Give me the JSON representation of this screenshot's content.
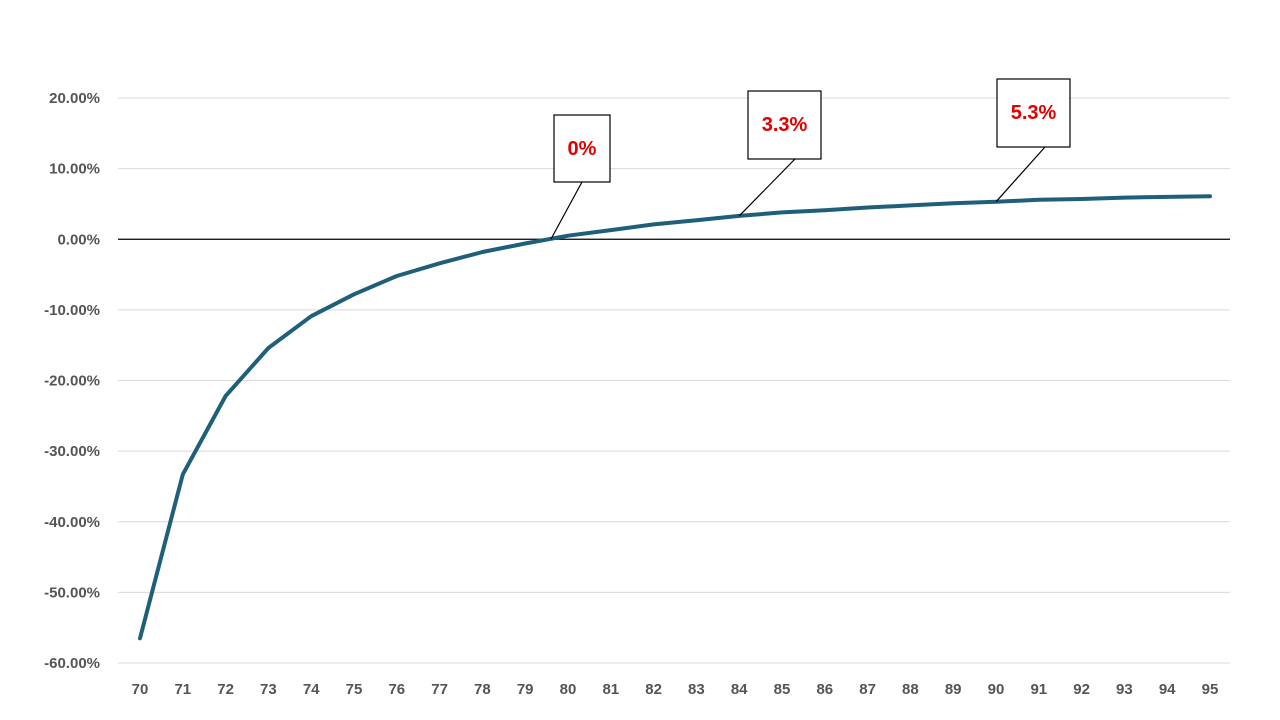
{
  "chart_data": {
    "type": "line",
    "title": "",
    "xlabel": "",
    "ylabel": "",
    "x": [
      70,
      71,
      72,
      73,
      74,
      75,
      76,
      77,
      78,
      79,
      80,
      81,
      82,
      83,
      84,
      85,
      86,
      87,
      88,
      89,
      90,
      91,
      92,
      93,
      94,
      95
    ],
    "series": [
      {
        "values": [
          -56.5,
          -33.3,
          -22.2,
          -15.4,
          -10.9,
          -7.8,
          -5.2,
          -3.4,
          -1.8,
          -0.6,
          0.5,
          1.3,
          2.1,
          2.7,
          3.3,
          3.8,
          4.1,
          4.5,
          4.8,
          5.1,
          5.3,
          5.6,
          5.7,
          5.9,
          6.0,
          6.1
        ],
        "color": "#1f5f7a"
      }
    ],
    "x_ticks": [
      "70",
      "71",
      "72",
      "73",
      "74",
      "75",
      "76",
      "77",
      "78",
      "79",
      "80",
      "81",
      "82",
      "83",
      "84",
      "85",
      "86",
      "87",
      "88",
      "89",
      "90",
      "91",
      "92",
      "93",
      "94",
      "95"
    ],
    "y_ticks": [
      {
        "value": 20,
        "label": "20.00%"
      },
      {
        "value": 10,
        "label": "10.00%"
      },
      {
        "value": 0,
        "label": "0.00%"
      },
      {
        "value": -10,
        "label": "-10.00%"
      },
      {
        "value": -20,
        "label": "-20.00%"
      },
      {
        "value": -30,
        "label": "-30.00%"
      },
      {
        "value": -40,
        "label": "-40.00%"
      },
      {
        "value": -50,
        "label": "-50.00%"
      },
      {
        "value": -60,
        "label": "-60.00%"
      }
    ],
    "xlim": [
      70,
      95
    ],
    "ylim": [
      -60,
      20
    ],
    "grid": true,
    "legend": "none",
    "annotations": [
      {
        "text": "0%",
        "x": 79.6,
        "y": 0,
        "color": "#e00000"
      },
      {
        "text": "3.3%",
        "x": 84,
        "y": 3.3,
        "color": "#e00000"
      },
      {
        "text": "5.3%",
        "x": 90,
        "y": 5.3,
        "color": "#e00000"
      }
    ]
  }
}
